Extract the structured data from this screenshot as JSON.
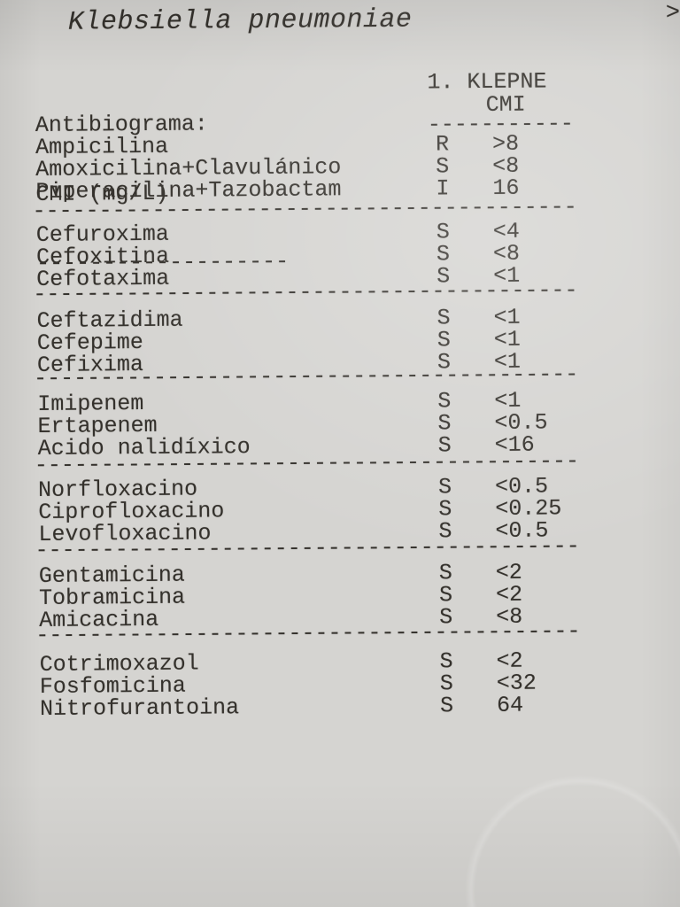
{
  "doc": {
    "title": "Klebsiella pneumoniae",
    "corner_mark": ">",
    "separator_full": "-----------------------------------------"
  },
  "header": {
    "left_line1": "Antibiograma:",
    "left_line2": "CMI (mg/L)",
    "left_underline": "-------------------",
    "right_line1": "1. KLEPNE",
    "right_line2": "CMI",
    "right_underline": "-----------"
  },
  "table": {
    "groups": [
      {
        "rows": [
          {
            "name": "Ampicilina",
            "sir": "R",
            "cmi": ">8"
          },
          {
            "name": "Amoxicilina+Clavulánico",
            "sir": "S",
            "cmi": "<8"
          },
          {
            "name": "Piperacilina+Tazobactam",
            "sir": "I",
            "cmi": "16"
          }
        ]
      },
      {
        "rows": [
          {
            "name": "Cefuroxima",
            "sir": "S",
            "cmi": "<4"
          },
          {
            "name": "Cefoxitina",
            "sir": "S",
            "cmi": "<8"
          },
          {
            "name": "Cefotaxima",
            "sir": "S",
            "cmi": "<1"
          }
        ]
      },
      {
        "rows": [
          {
            "name": "Ceftazidima",
            "sir": "S",
            "cmi": "<1"
          },
          {
            "name": "Cefepime",
            "sir": "S",
            "cmi": "<1"
          },
          {
            "name": "Cefixima",
            "sir": "S",
            "cmi": "<1"
          }
        ]
      },
      {
        "rows": [
          {
            "name": "Imipenem",
            "sir": "S",
            "cmi": "<1"
          },
          {
            "name": "Ertapenem",
            "sir": "S",
            "cmi": "<0.5"
          },
          {
            "name": "Acido nalidíxico",
            "sir": "S",
            "cmi": "<16"
          }
        ]
      },
      {
        "rows": [
          {
            "name": "Norfloxacino",
            "sir": "S",
            "cmi": "<0.5"
          },
          {
            "name": "Ciprofloxacino",
            "sir": "S",
            "cmi": "<0.25"
          },
          {
            "name": "Levofloxacino",
            "sir": "S",
            "cmi": "<0.5"
          }
        ]
      },
      {
        "rows": [
          {
            "name": "Gentamicina",
            "sir": "S",
            "cmi": "<2"
          },
          {
            "name": "Tobramicina",
            "sir": "S",
            "cmi": "<2"
          },
          {
            "name": "Amicacina",
            "sir": "S",
            "cmi": "<8"
          }
        ]
      },
      {
        "rows": [
          {
            "name": "Cotrimoxazol",
            "sir": "S",
            "cmi": "<2"
          },
          {
            "name": "Fosfomicina",
            "sir": "S",
            "cmi": "<32"
          },
          {
            "name": "Nitrofurantoina",
            "sir": "S",
            "cmi": "64"
          }
        ]
      }
    ]
  },
  "colors": {
    "paper": "#d5d4d1",
    "ink": "#34312c"
  }
}
